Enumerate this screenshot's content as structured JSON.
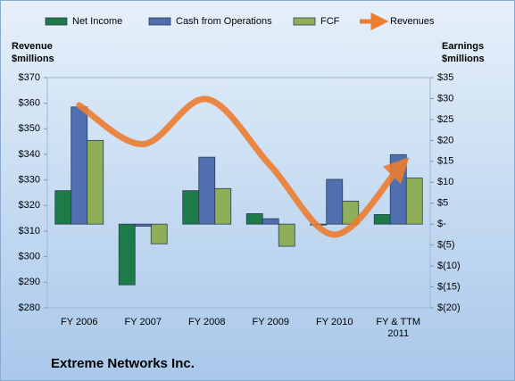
{
  "chart_data": {
    "type": "bar",
    "title": "Extreme Networks Inc.",
    "y_label": "Revenue $millions",
    "y2_label": "Earnings $millions",
    "categories": [
      "FY 2006",
      "FY 2007",
      "FY 2008",
      "FY 2009",
      "FY 2010",
      "FY & TTM 2011"
    ],
    "series": [
      {
        "name": "Net Income",
        "color": "#1f7a4a",
        "type": "bar",
        "axis": "y2",
        "values": [
          8,
          -14.5,
          8,
          2.5,
          0,
          2.3
        ]
      },
      {
        "name": "Cash from Operations",
        "color": "#4f6fae",
        "type": "bar",
        "axis": "y2",
        "values": [
          28,
          -0.5,
          16,
          1.3,
          10.7,
          16.6
        ]
      },
      {
        "name": "FCF",
        "color": "#8fae5a",
        "type": "bar",
        "axis": "y2",
        "values": [
          20,
          -4.7,
          8.5,
          -5.3,
          5.5,
          11
        ]
      },
      {
        "name": "Revenues",
        "color": "#ed7d31",
        "type": "line",
        "values": [
          359.2,
          344,
          361.6,
          335.5,
          308.6,
          334.5
        ]
      }
    ],
    "ylim": [
      280,
      370
    ],
    "yticks": [
      {
        "value": 280,
        "label": "$280"
      },
      {
        "value": 290,
        "label": "$290"
      },
      {
        "value": 300,
        "label": "$300"
      },
      {
        "value": 310,
        "label": "$310"
      },
      {
        "value": 320,
        "label": "$320"
      },
      {
        "value": 330,
        "label": "$330"
      },
      {
        "value": 340,
        "label": "$340"
      },
      {
        "value": 350,
        "label": "$350"
      },
      {
        "value": 360,
        "label": "$360"
      },
      {
        "value": 370,
        "label": "$370"
      }
    ],
    "y2lim": [
      -20,
      35
    ],
    "y2ticks": [
      {
        "value": -20,
        "label": "$(20)"
      },
      {
        "value": -15,
        "label": "$(15)"
      },
      {
        "value": -10,
        "label": "$(10)"
      },
      {
        "value": -5,
        "label": "$(5)"
      },
      {
        "value": 0,
        "label": "$-"
      },
      {
        "value": 5,
        "label": "$5"
      },
      {
        "value": 10,
        "label": "$10"
      },
      {
        "value": 15,
        "label": "$15"
      },
      {
        "value": 20,
        "label": "$20"
      },
      {
        "value": 25,
        "label": "$25"
      },
      {
        "value": 30,
        "label": "$30"
      },
      {
        "value": 35,
        "label": "$35"
      }
    ],
    "legend": "top"
  }
}
